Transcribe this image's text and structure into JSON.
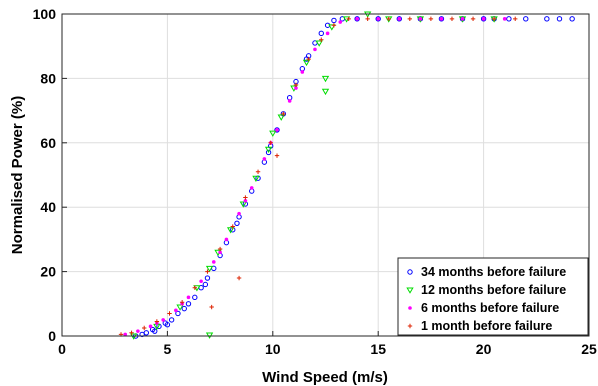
{
  "chart_data": {
    "type": "scatter",
    "title": "",
    "xlabel": "Wind Speed (m/s)",
    "ylabel": "Normalised Power (%)",
    "xlim": [
      0,
      25
    ],
    "ylim": [
      0,
      100
    ],
    "xticks": [
      "0",
      "5",
      "10",
      "15",
      "20",
      "25"
    ],
    "yticks": [
      "0",
      "20",
      "40",
      "60",
      "80",
      "100"
    ],
    "grid": true,
    "legend_position": "bottom-right",
    "series": [
      {
        "name": "34 months before failure",
        "color": "#0000ff",
        "marker": "circle",
        "points": [
          [
            3.5,
            0
          ],
          [
            3.8,
            0.5
          ],
          [
            4.0,
            1
          ],
          [
            4.3,
            2
          ],
          [
            4.6,
            3
          ],
          [
            4.9,
            4
          ],
          [
            5.2,
            5
          ],
          [
            5.5,
            7
          ],
          [
            5.8,
            8.5
          ],
          [
            6.0,
            10
          ],
          [
            6.3,
            12
          ],
          [
            6.6,
            15
          ],
          [
            6.9,
            18
          ],
          [
            7.2,
            21
          ],
          [
            7.5,
            25
          ],
          [
            7.8,
            29
          ],
          [
            8.1,
            33
          ],
          [
            8.4,
            37
          ],
          [
            8.7,
            41
          ],
          [
            9.0,
            45
          ],
          [
            9.3,
            49
          ],
          [
            9.6,
            54
          ],
          [
            9.9,
            59
          ],
          [
            10.2,
            64
          ],
          [
            10.5,
            69
          ],
          [
            10.8,
            74
          ],
          [
            11.1,
            79
          ],
          [
            11.4,
            83
          ],
          [
            11.7,
            87
          ],
          [
            12.0,
            91
          ],
          [
            12.3,
            94
          ],
          [
            12.6,
            96.5
          ],
          [
            12.9,
            98
          ],
          [
            13.3,
            98.5
          ],
          [
            14,
            98.5
          ],
          [
            15,
            98.5
          ],
          [
            16,
            98.5
          ],
          [
            17,
            98.5
          ],
          [
            18,
            98.5
          ],
          [
            19,
            98.5
          ],
          [
            20,
            98.5
          ],
          [
            20.5,
            98.5
          ],
          [
            21.2,
            98.5
          ],
          [
            22.0,
            98.5
          ],
          [
            23.0,
            98.5
          ],
          [
            23.6,
            98.5
          ],
          [
            24.2,
            98.5
          ],
          [
            4.4,
            1.5
          ],
          [
            5.0,
            3.5
          ],
          [
            6.8,
            16
          ],
          [
            8.3,
            35
          ],
          [
            9.8,
            57
          ],
          [
            11.6,
            86
          ]
        ]
      },
      {
        "name": "12 months before failure",
        "color": "#00dd00",
        "marker": "triangle-down",
        "points": [
          [
            3.4,
            0
          ],
          [
            4.5,
            3
          ],
          [
            5.6,
            9
          ],
          [
            6.4,
            15
          ],
          [
            7.0,
            21
          ],
          [
            7.0,
            0.3
          ],
          [
            7.4,
            26
          ],
          [
            8.0,
            33
          ],
          [
            8.6,
            41
          ],
          [
            9.2,
            49
          ],
          [
            9.8,
            58
          ],
          [
            10.0,
            63
          ],
          [
            10.4,
            68
          ],
          [
            11.0,
            77
          ],
          [
            11.6,
            85
          ],
          [
            12.2,
            91
          ],
          [
            12.5,
            80
          ],
          [
            12.5,
            76
          ],
          [
            12.8,
            96
          ],
          [
            13.5,
            98.5
          ],
          [
            14.5,
            100
          ],
          [
            15.5,
            98.5
          ],
          [
            17,
            98.5
          ],
          [
            19,
            98.5
          ],
          [
            20.5,
            98.5
          ]
        ]
      },
      {
        "name": "6 months before failure",
        "color": "#ff00ff",
        "marker": "dot",
        "points": [
          [
            3.0,
            0.5
          ],
          [
            3.6,
            1.5
          ],
          [
            4.2,
            3
          ],
          [
            4.8,
            5
          ],
          [
            5.4,
            8
          ],
          [
            6.0,
            12
          ],
          [
            6.6,
            17
          ],
          [
            7.2,
            23
          ],
          [
            7.8,
            30
          ],
          [
            8.4,
            38
          ],
          [
            9.0,
            46
          ],
          [
            9.6,
            55
          ],
          [
            10.2,
            64
          ],
          [
            10.8,
            73
          ],
          [
            11.4,
            82
          ],
          [
            12.0,
            89
          ],
          [
            12.6,
            94
          ],
          [
            13.2,
            97.5
          ],
          [
            14,
            98.5
          ],
          [
            15,
            98.5
          ],
          [
            16,
            98.5
          ],
          [
            17,
            98.5
          ],
          [
            18,
            98.5
          ],
          [
            19,
            98.5
          ],
          [
            20,
            98.5
          ],
          [
            21,
            98.5
          ],
          [
            4.5,
            4
          ],
          [
            5.7,
            10
          ],
          [
            7.5,
            26
          ],
          [
            8.7,
            42
          ],
          [
            9.9,
            60
          ],
          [
            11.1,
            77
          ]
        ]
      },
      {
        "name": "1 month before failure",
        "color": "#dd2200",
        "marker": "plus",
        "points": [
          [
            2.8,
            0.5
          ],
          [
            3.3,
            1
          ],
          [
            3.9,
            2.5
          ],
          [
            4.5,
            4.5
          ],
          [
            5.1,
            7
          ],
          [
            5.7,
            10.5
          ],
          [
            6.3,
            15
          ],
          [
            6.9,
            20
          ],
          [
            7.5,
            27
          ],
          [
            8.1,
            34
          ],
          [
            8.7,
            43
          ],
          [
            9.3,
            51
          ],
          [
            9.9,
            60
          ],
          [
            10.5,
            69
          ],
          [
            11.1,
            78
          ],
          [
            11.7,
            86
          ],
          [
            12.3,
            92
          ],
          [
            12.9,
            96.5
          ],
          [
            13.6,
            98.5
          ],
          [
            14.5,
            98.5
          ],
          [
            15.5,
            98.5
          ],
          [
            16.5,
            98.5
          ],
          [
            17.5,
            98.5
          ],
          [
            18.5,
            98.5
          ],
          [
            19.5,
            98.5
          ],
          [
            20.5,
            98.5
          ],
          [
            21.5,
            98.5
          ],
          [
            7.1,
            9
          ],
          [
            8.4,
            18
          ],
          [
            10.2,
            56
          ]
        ]
      }
    ]
  }
}
